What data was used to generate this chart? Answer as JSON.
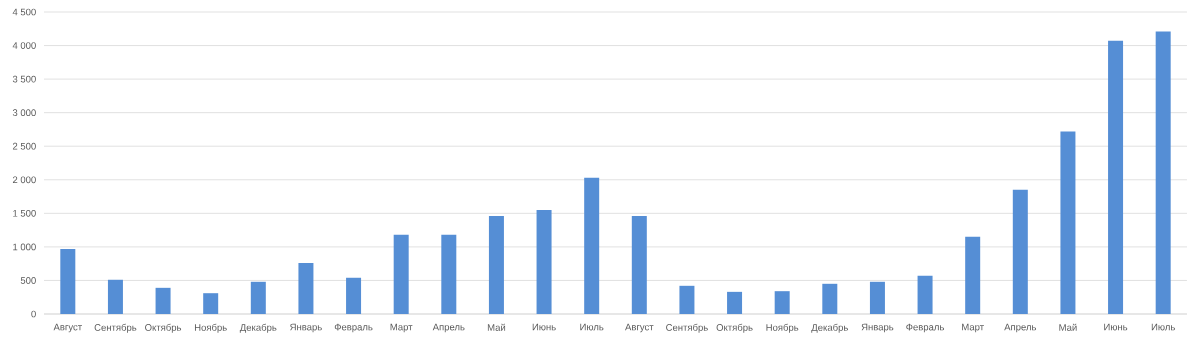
{
  "chart_data": {
    "type": "bar",
    "categories": [
      "Август",
      "Сентябрь",
      "Октябрь",
      "Ноябрь",
      "Декабрь",
      "Январь",
      "Февраль",
      "Март",
      "Апрель",
      "Май",
      "Июнь",
      "Июль",
      "Август",
      "Сентябрь",
      "Октябрь",
      "Ноябрь",
      "Декабрь",
      "Январь",
      "Февраль",
      "Март",
      "Апрель",
      "Май",
      "Июнь",
      "Июль"
    ],
    "values": [
      970,
      510,
      390,
      310,
      480,
      760,
      540,
      1180,
      1180,
      1460,
      1550,
      2030,
      1460,
      420,
      330,
      340,
      450,
      480,
      570,
      1150,
      1850,
      2720,
      4070,
      4210
    ],
    "color": "#558ed5",
    "ylim": [
      0,
      4500
    ],
    "yticks": [
      0,
      500,
      {
        "value": 1000,
        "label": "1 000"
      },
      {
        "value": 1500,
        "label": "1 500"
      },
      {
        "value": 2000,
        "label": "2 000"
      },
      {
        "value": 2500,
        "label": "2 500"
      },
      {
        "value": 3000,
        "label": "3 000"
      },
      {
        "value": 3500,
        "label": "3 500"
      },
      {
        "value": 4000,
        "label": "4 000"
      },
      {
        "value": 4500,
        "label": "4 500"
      }
    ],
    "grid": "y"
  }
}
